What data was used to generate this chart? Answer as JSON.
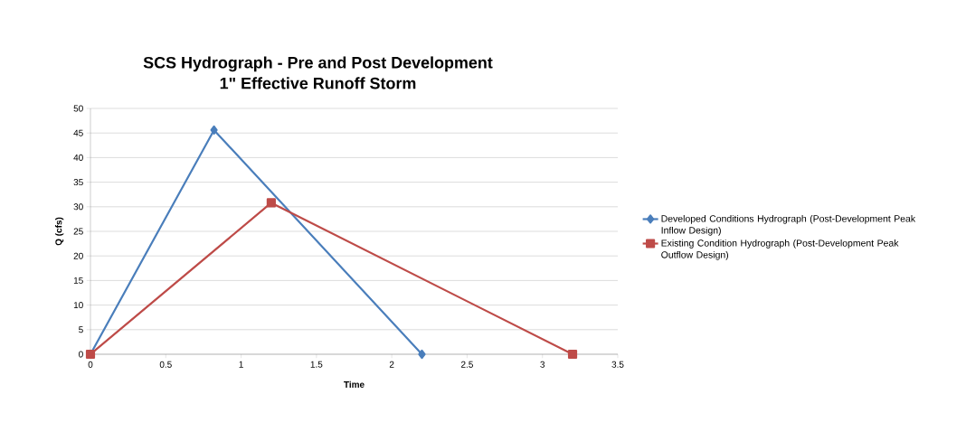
{
  "chart_data": {
    "type": "line",
    "title": "SCS Hydrograph  - Pre and Post Development",
    "subtitle": "1\" Effective Runoff Storm",
    "xlabel": "Time",
    "ylabel": "Q  (cfs)",
    "series": [
      {
        "name": "Developed Conditions Hydrograph (Post-Development Peak Inflow Design)",
        "color": "#4a7ebb",
        "marker": "diamond",
        "x": [
          0,
          0.82,
          2.2
        ],
        "values": [
          0,
          45.6,
          0
        ]
      },
      {
        "name": "Existing Condition Hydrograph (Post-Development Peak Outflow Design)",
        "color": "#be4b48",
        "marker": "square",
        "x": [
          0,
          1.2,
          3.2
        ],
        "values": [
          0,
          30.8,
          0
        ]
      }
    ],
    "xlim": [
      0,
      3.5
    ],
    "xticks": [
      0,
      0.5,
      1,
      1.5,
      2,
      2.5,
      3,
      3.5
    ],
    "ylim": [
      0,
      50
    ],
    "yticks": [
      0,
      5,
      10,
      15,
      20,
      25,
      30,
      35,
      40,
      45,
      50
    ],
    "grid": "y",
    "legend": "right",
    "line_style": "solid"
  }
}
